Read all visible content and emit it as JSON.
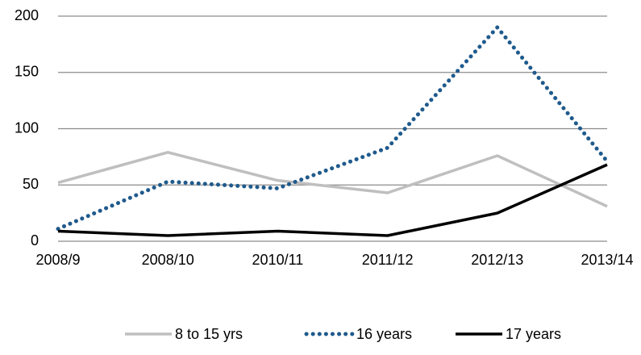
{
  "chart_data": {
    "type": "line",
    "categories": [
      "2008/9",
      "2008/10",
      "2010/11",
      "2011/12",
      "2012/13",
      "2013/14"
    ],
    "series": [
      {
        "name": "8 to 15 yrs",
        "color": "#bfbfbf",
        "style": "solid",
        "values": [
          52,
          79,
          54,
          43,
          76,
          31
        ]
      },
      {
        "name": "16 years",
        "color": "#1f5a8c",
        "style": "dotted",
        "values": [
          11,
          53,
          47,
          83,
          190,
          71
        ]
      },
      {
        "name": "17 years",
        "color": "#000000",
        "style": "solid",
        "values": [
          9,
          5,
          9,
          5,
          25,
          68
        ]
      }
    ],
    "ylim": [
      0,
      200
    ],
    "yticks": [
      0,
      50,
      100,
      150,
      200
    ],
    "grid": true,
    "legend": "bottom"
  }
}
